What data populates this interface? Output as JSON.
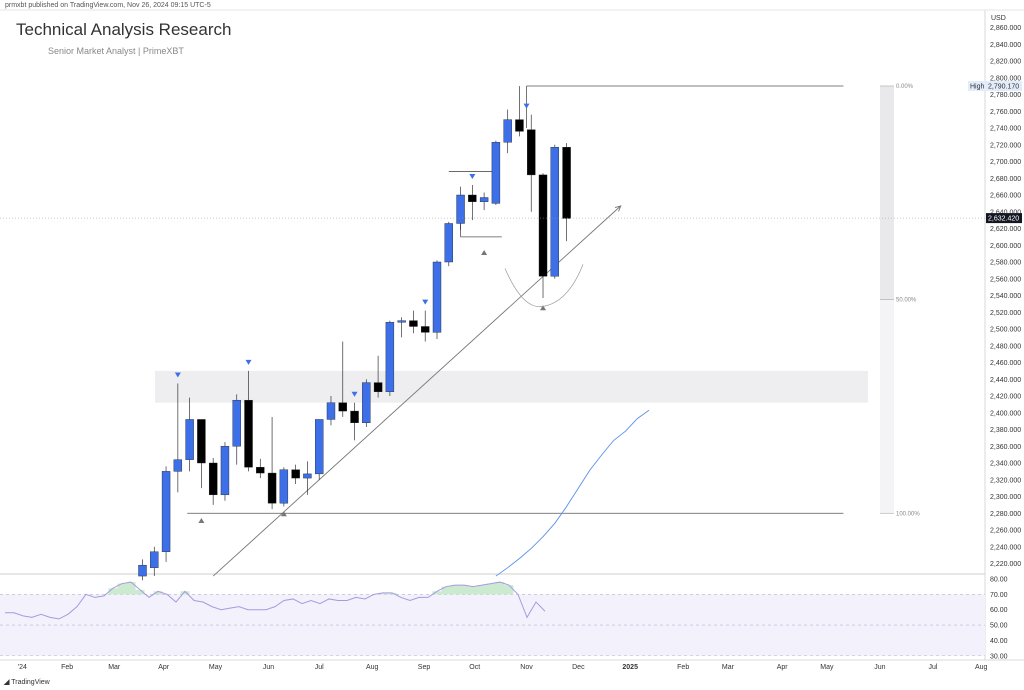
{
  "publisher_line": "prmxbt published on TradingView.com, Nov 26, 2024 09:15 UTC-5",
  "branding": {
    "logo_text": "TradingView"
  },
  "chart_data": {
    "type": "candlestick",
    "title": "Technical Analysis Research",
    "subtitle": "Senior Market Analyst | PrimeXBT",
    "price_axis_unit": "USD",
    "price_range": [
      2205,
      2865
    ],
    "price_ticks": [
      2220,
      2240,
      2260,
      2280,
      2300,
      2320,
      2340,
      2360,
      2380,
      2400,
      2420,
      2440,
      2460,
      2480,
      2500,
      2520,
      2540,
      2560,
      2580,
      2600,
      2620,
      2640,
      2660,
      2680,
      2700,
      2720,
      2740,
      2760,
      2780,
      2800,
      2820,
      2840,
      2860
    ],
    "price_tick_labels": [
      "2,220.000",
      "2,240.000",
      "2,260.000",
      "2,280.000",
      "2,300.000",
      "2,320.000",
      "2,340.000",
      "2,360.000",
      "2,380.000",
      "2,400.000",
      "2,420.000",
      "2,440.000",
      "2,460.000",
      "2,480.000",
      "2,500.000",
      "2,520.000",
      "2,540.000",
      "2,560.000",
      "2,580.000",
      "2,600.000",
      "2,620.000",
      "2,640.000",
      "2,660.000",
      "2,680.000",
      "2,700.000",
      "2,720.000",
      "2,740.000",
      "2,760.000",
      "2,780.000",
      "2,800.000",
      "2,820.000",
      "2,840.000",
      "2,860.000"
    ],
    "high_label": {
      "text": "High",
      "value": 2790.17,
      "value_text": "2,790.170"
    },
    "last_price": {
      "value": 2632.42,
      "value_text": "2,632.420"
    },
    "time_axis": [
      {
        "label": "'24",
        "week": -10.2
      },
      {
        "label": "Feb",
        "week": -6.4
      },
      {
        "label": "Mar",
        "week": -2.4
      },
      {
        "label": "Apr",
        "week": 1.8
      },
      {
        "label": "May",
        "week": 6.2
      },
      {
        "label": "Jun",
        "week": 10.7
      },
      {
        "label": "Jul",
        "week": 15
      },
      {
        "label": "Aug",
        "week": 19.5
      },
      {
        "label": "Sep",
        "week": 23.9
      },
      {
        "label": "Oct",
        "week": 28.2
      },
      {
        "label": "Nov",
        "week": 32.6
      },
      {
        "label": "Dec",
        "week": 37
      },
      {
        "label": "2025",
        "week": 41.4
      },
      {
        "label": "Feb",
        "week": 45.9
      },
      {
        "label": "Mar",
        "week": 49.7
      },
      {
        "label": "Apr",
        "week": 54.3
      },
      {
        "label": "May",
        "week": 58.1
      },
      {
        "label": "Jun",
        "week": 62.6
      },
      {
        "label": "Jul",
        "week": 67.1
      },
      {
        "label": "Aug",
        "week": 71.2
      }
    ],
    "candles": [
      {
        "o": 2205,
        "h": 2225,
        "l": 2200,
        "c": 2218
      },
      {
        "o": 2215,
        "h": 2240,
        "l": 2205,
        "c": 2234
      },
      {
        "o": 2234,
        "h": 2336,
        "l": 2222,
        "c": 2330
      },
      {
        "o": 2330,
        "h": 2435,
        "l": 2305,
        "c": 2344
      },
      {
        "o": 2344,
        "h": 2418,
        "l": 2330,
        "c": 2392
      },
      {
        "o": 2392,
        "h": 2392,
        "l": 2310,
        "c": 2340
      },
      {
        "o": 2340,
        "h": 2346,
        "l": 2290,
        "c": 2302
      },
      {
        "o": 2302,
        "h": 2365,
        "l": 2295,
        "c": 2360
      },
      {
        "o": 2360,
        "h": 2422,
        "l": 2338,
        "c": 2415
      },
      {
        "o": 2415,
        "h": 2450,
        "l": 2330,
        "c": 2335
      },
      {
        "o": 2335,
        "h": 2345,
        "l": 2322,
        "c": 2328
      },
      {
        "o": 2328,
        "h": 2395,
        "l": 2285,
        "c": 2292
      },
      {
        "o": 2292,
        "h": 2335,
        "l": 2288,
        "c": 2332
      },
      {
        "o": 2332,
        "h": 2338,
        "l": 2315,
        "c": 2322
      },
      {
        "o": 2322,
        "h": 2342,
        "l": 2302,
        "c": 2327
      },
      {
        "o": 2327,
        "h": 2390,
        "l": 2320,
        "c": 2392
      },
      {
        "o": 2392,
        "h": 2420,
        "l": 2385,
        "c": 2412
      },
      {
        "o": 2412,
        "h": 2485,
        "l": 2395,
        "c": 2402
      },
      {
        "o": 2402,
        "h": 2412,
        "l": 2367,
        "c": 2388
      },
      {
        "o": 2388,
        "h": 2440,
        "l": 2383,
        "c": 2436
      },
      {
        "o": 2436,
        "h": 2468,
        "l": 2418,
        "c": 2425
      },
      {
        "o": 2425,
        "h": 2510,
        "l": 2420,
        "c": 2508
      },
      {
        "o": 2508,
        "h": 2514,
        "l": 2490,
        "c": 2510
      },
      {
        "o": 2510,
        "h": 2522,
        "l": 2495,
        "c": 2503
      },
      {
        "o": 2503,
        "h": 2522,
        "l": 2485,
        "c": 2496
      },
      {
        "o": 2496,
        "h": 2582,
        "l": 2488,
        "c": 2580
      },
      {
        "o": 2580,
        "h": 2628,
        "l": 2575,
        "c": 2626
      },
      {
        "o": 2626,
        "h": 2670,
        "l": 2618,
        "c": 2660
      },
      {
        "o": 2660,
        "h": 2672,
        "l": 2630,
        "c": 2652
      },
      {
        "o": 2652,
        "h": 2663,
        "l": 2642,
        "c": 2657
      },
      {
        "o": 2650,
        "h": 2725,
        "l": 2648,
        "c": 2723
      },
      {
        "o": 2723,
        "h": 2762,
        "l": 2710,
        "c": 2750
      },
      {
        "o": 2750,
        "h": 2790,
        "l": 2730,
        "c": 2736
      },
      {
        "o": 2738,
        "h": 2756,
        "l": 2640,
        "c": 2684
      },
      {
        "o": 2684,
        "h": 2686,
        "l": 2537,
        "c": 2563
      },
      {
        "o": 2563,
        "h": 2720,
        "l": 2560,
        "c": 2717
      },
      {
        "o": 2717,
        "h": 2722,
        "l": 2605,
        "c": 2632
      }
    ],
    "moving_average": [
      {
        "week": 30,
        "value": 2205
      },
      {
        "week": 31,
        "value": 2215
      },
      {
        "week": 32,
        "value": 2226
      },
      {
        "week": 33,
        "value": 2238
      },
      {
        "week": 34,
        "value": 2252
      },
      {
        "week": 35,
        "value": 2268
      },
      {
        "week": 36,
        "value": 2288
      },
      {
        "week": 37,
        "value": 2310
      },
      {
        "week": 38,
        "value": 2332
      },
      {
        "week": 39,
        "value": 2350
      },
      {
        "week": 40,
        "value": 2367
      },
      {
        "week": 41,
        "value": 2378
      },
      {
        "week": 42,
        "value": 2393
      },
      {
        "week": 43,
        "value": 2403
      }
    ],
    "fib_levels": [
      {
        "label": "0.00%",
        "value": 2790.17
      },
      {
        "label": "50.00%",
        "value": 2535
      },
      {
        "label": "100.00%",
        "value": 2280
      }
    ],
    "resistance_zone": [
      2412,
      2450
    ],
    "trendline": {
      "from": {
        "week": 6,
        "value": 2205
      },
      "to": {
        "week": 40.6,
        "value": 2647
      }
    },
    "horizontal_lines": [
      {
        "from_week": 3.8,
        "to_week": 59.5,
        "value": 2280
      },
      {
        "from_week": 32.6,
        "to_week": 59.5,
        "value": 2790.17
      },
      {
        "from_week": 26,
        "to_week": 30,
        "value": 2688
      },
      {
        "from_week": 27,
        "to_week": 30.5,
        "value": 2610
      }
    ],
    "swing_markers_down": [
      3,
      9,
      18,
      24,
      28,
      32.6
    ],
    "swing_markers_up": [
      {
        "week": 5,
        "value": 2272
      },
      {
        "week": 12,
        "value": 2280
      },
      {
        "week": 29,
        "value": 2592
      },
      {
        "week": 34,
        "value": 2526
      }
    ],
    "rsi": {
      "range": [
        25,
        85
      ],
      "ticks": [
        30,
        40,
        50,
        60,
        70,
        80
      ],
      "tick_labels": [
        "30.00",
        "40.00",
        "50.00",
        "60.00",
        "70.00",
        "80.00"
      ],
      "overbought": 70,
      "mid": 50,
      "oversold": 30,
      "values": [
        58,
        58,
        56,
        55,
        57,
        55,
        54,
        57,
        62,
        70,
        68,
        69,
        74,
        77,
        78,
        73,
        68,
        72,
        70,
        65,
        72,
        66,
        65,
        62,
        60,
        61,
        62,
        60,
        60,
        60,
        62,
        66,
        67,
        64,
        66,
        64,
        67,
        66,
        66,
        68,
        67,
        70,
        71,
        71,
        68,
        66,
        68,
        68,
        72,
        75,
        76,
        76,
        75,
        76,
        77,
        78,
        76,
        70,
        55,
        65,
        59
      ]
    },
    "colors": {
      "bull": "#3d6fe8",
      "bear": "#000000",
      "ma": "#5a8fe8",
      "rsi_line": "#a59be0",
      "rsi_band": "#f3f1fb",
      "marker_down": "#3d6fe8",
      "marker_up": "#777777",
      "zone": "#eeeef1",
      "rsi_fill": "#bfe5c4"
    }
  }
}
